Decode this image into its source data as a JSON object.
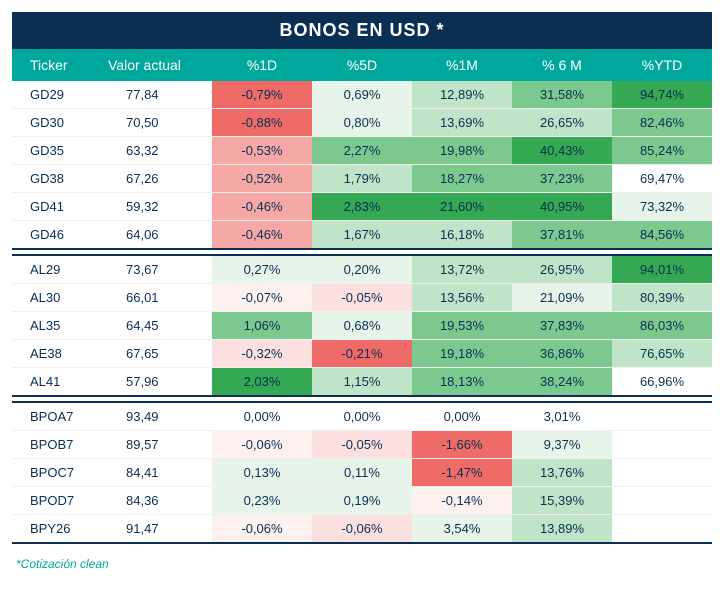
{
  "title": "BONOS EN USD *",
  "footnote": "*Cotización clean",
  "columns": [
    "Ticker",
    "Valor actual",
    "%1D",
    "%5D",
    "%1M",
    "% 6 M",
    "%YTD"
  ],
  "colors": {
    "title_bg": "#0a2f52",
    "header_bg": "#00a79d",
    "text": "#0a2f52",
    "red_strong": "#ef6b68",
    "red_mid": "#f5a8a5",
    "red_light": "#fbe0df",
    "red_faint": "#fdf1f0",
    "green_strong": "#34a853",
    "green_mid": "#7bc98e",
    "green_light": "#bfe4c8",
    "green_faint": "#e6f4ea",
    "white": "#ffffff"
  },
  "groups": [
    {
      "rows": [
        {
          "ticker": "GD29",
          "valor": "77,84",
          "cells": [
            {
              "v": "-0,79%",
              "bg": "#ef6b68"
            },
            {
              "v": "0,69%",
              "bg": "#e6f4ea"
            },
            {
              "v": "12,89%",
              "bg": "#bfe4c8"
            },
            {
              "v": "31,58%",
              "bg": "#7bc98e"
            },
            {
              "v": "94,74%",
              "bg": "#34a853"
            }
          ]
        },
        {
          "ticker": "GD30",
          "valor": "70,50",
          "cells": [
            {
              "v": "-0,88%",
              "bg": "#ef6b68"
            },
            {
              "v": "0,80%",
              "bg": "#e6f4ea"
            },
            {
              "v": "13,69%",
              "bg": "#bfe4c8"
            },
            {
              "v": "26,65%",
              "bg": "#bfe4c8"
            },
            {
              "v": "82,46%",
              "bg": "#7bc98e"
            }
          ]
        },
        {
          "ticker": "GD35",
          "valor": "63,32",
          "cells": [
            {
              "v": "-0,53%",
              "bg": "#f5a8a5"
            },
            {
              "v": "2,27%",
              "bg": "#7bc98e"
            },
            {
              "v": "19,98%",
              "bg": "#7bc98e"
            },
            {
              "v": "40,43%",
              "bg": "#34a853"
            },
            {
              "v": "85,24%",
              "bg": "#7bc98e"
            }
          ]
        },
        {
          "ticker": "GD38",
          "valor": "67,26",
          "cells": [
            {
              "v": "-0,52%",
              "bg": "#f5a8a5"
            },
            {
              "v": "1,79%",
              "bg": "#bfe4c8"
            },
            {
              "v": "18,27%",
              "bg": "#7bc98e"
            },
            {
              "v": "37,23%",
              "bg": "#7bc98e"
            },
            {
              "v": "69,47%",
              "bg": "#ffffff"
            }
          ]
        },
        {
          "ticker": "GD41",
          "valor": "59,32",
          "cells": [
            {
              "v": "-0,46%",
              "bg": "#f5a8a5"
            },
            {
              "v": "2,83%",
              "bg": "#34a853"
            },
            {
              "v": "21,60%",
              "bg": "#34a853"
            },
            {
              "v": "40,95%",
              "bg": "#34a853"
            },
            {
              "v": "73,32%",
              "bg": "#e6f4ea"
            }
          ]
        },
        {
          "ticker": "GD46",
          "valor": "64,06",
          "cells": [
            {
              "v": "-0,46%",
              "bg": "#f5a8a5"
            },
            {
              "v": "1,67%",
              "bg": "#bfe4c8"
            },
            {
              "v": "16,18%",
              "bg": "#bfe4c8"
            },
            {
              "v": "37,81%",
              "bg": "#7bc98e"
            },
            {
              "v": "84,56%",
              "bg": "#7bc98e"
            }
          ]
        }
      ]
    },
    {
      "rows": [
        {
          "ticker": "AL29",
          "valor": "73,67",
          "cells": [
            {
              "v": "0,27%",
              "bg": "#e6f4ea"
            },
            {
              "v": "0,20%",
              "bg": "#e6f4ea"
            },
            {
              "v": "13,72%",
              "bg": "#bfe4c8"
            },
            {
              "v": "26,95%",
              "bg": "#bfe4c8"
            },
            {
              "v": "94,01%",
              "bg": "#34a853"
            }
          ]
        },
        {
          "ticker": "AL30",
          "valor": "66,01",
          "cells": [
            {
              "v": "-0,07%",
              "bg": "#fdf1f0"
            },
            {
              "v": "-0,05%",
              "bg": "#fbe0df"
            },
            {
              "v": "13,56%",
              "bg": "#bfe4c8"
            },
            {
              "v": "21,09%",
              "bg": "#e6f4ea"
            },
            {
              "v": "80,39%",
              "bg": "#bfe4c8"
            }
          ]
        },
        {
          "ticker": "AL35",
          "valor": "64,45",
          "cells": [
            {
              "v": "1,06%",
              "bg": "#7bc98e"
            },
            {
              "v": "0,68%",
              "bg": "#e6f4ea"
            },
            {
              "v": "19,53%",
              "bg": "#7bc98e"
            },
            {
              "v": "37,83%",
              "bg": "#7bc98e"
            },
            {
              "v": "86,03%",
              "bg": "#7bc98e"
            }
          ]
        },
        {
          "ticker": "AE38",
          "valor": "67,65",
          "cells": [
            {
              "v": "-0,32%",
              "bg": "#fbe0df"
            },
            {
              "v": "-0,21%",
              "bg": "#ef6b68"
            },
            {
              "v": "19,18%",
              "bg": "#7bc98e"
            },
            {
              "v": "36,86%",
              "bg": "#7bc98e"
            },
            {
              "v": "76,65%",
              "bg": "#bfe4c8"
            }
          ]
        },
        {
          "ticker": "AL41",
          "valor": "57,96",
          "cells": [
            {
              "v": "2,03%",
              "bg": "#34a853"
            },
            {
              "v": "1,15%",
              "bg": "#bfe4c8"
            },
            {
              "v": "18,13%",
              "bg": "#7bc98e"
            },
            {
              "v": "38,24%",
              "bg": "#7bc98e"
            },
            {
              "v": "66,96%",
              "bg": "#ffffff"
            }
          ]
        }
      ]
    },
    {
      "rows": [
        {
          "ticker": "BPOA7",
          "valor": "93,49",
          "cells": [
            {
              "v": "0,00%",
              "bg": "#ffffff"
            },
            {
              "v": "0,00%",
              "bg": "#ffffff"
            },
            {
              "v": "0,00%",
              "bg": "#ffffff"
            },
            {
              "v": "3,01%",
              "bg": "#ffffff"
            },
            {
              "v": "",
              "bg": "#ffffff"
            }
          ]
        },
        {
          "ticker": "BPOB7",
          "valor": "89,57",
          "cells": [
            {
              "v": "-0,06%",
              "bg": "#fdf1f0"
            },
            {
              "v": "-0,05%",
              "bg": "#fbe0df"
            },
            {
              "v": "-1,66%",
              "bg": "#ef6b68"
            },
            {
              "v": "9,37%",
              "bg": "#e6f4ea"
            },
            {
              "v": "",
              "bg": "#ffffff"
            }
          ]
        },
        {
          "ticker": "BPOC7",
          "valor": "84,41",
          "cells": [
            {
              "v": "0,13%",
              "bg": "#e6f4ea"
            },
            {
              "v": "0,11%",
              "bg": "#e6f4ea"
            },
            {
              "v": "-1,47%",
              "bg": "#ef6b68"
            },
            {
              "v": "13,76%",
              "bg": "#bfe4c8"
            },
            {
              "v": "",
              "bg": "#ffffff"
            }
          ]
        },
        {
          "ticker": "BPOD7",
          "valor": "84,36",
          "cells": [
            {
              "v": "0,23%",
              "bg": "#e6f4ea"
            },
            {
              "v": "0,19%",
              "bg": "#e6f4ea"
            },
            {
              "v": "-0,14%",
              "bg": "#fdf1f0"
            },
            {
              "v": "15,39%",
              "bg": "#bfe4c8"
            },
            {
              "v": "",
              "bg": "#ffffff"
            }
          ]
        },
        {
          "ticker": "BPY26",
          "valor": "91,47",
          "cells": [
            {
              "v": "-0,06%",
              "bg": "#fdf1f0"
            },
            {
              "v": "-0,06%",
              "bg": "#fbe0df"
            },
            {
              "v": "3,54%",
              "bg": "#e6f4ea"
            },
            {
              "v": "13,89%",
              "bg": "#bfe4c8"
            },
            {
              "v": "",
              "bg": "#ffffff"
            }
          ]
        }
      ]
    }
  ]
}
